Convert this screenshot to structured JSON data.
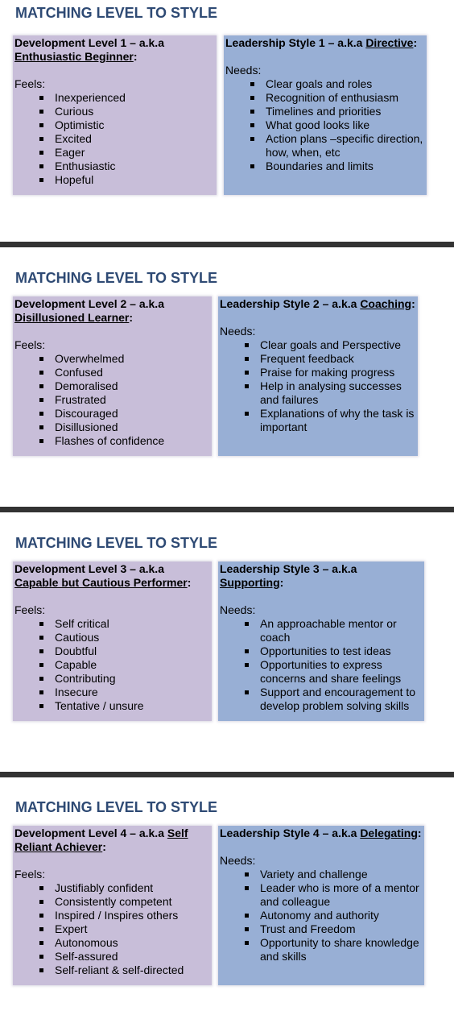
{
  "slides": [
    {
      "title": "MATCHING LEVEL TO STYLE",
      "left": {
        "heading_prefix": "Development Level 1 – a.k.a ",
        "heading_name": "Enthusiastic Beginner",
        "heading_suffix": ":",
        "label": "Feels:",
        "items": [
          "Inexperienced",
          "Curious",
          "Optimistic",
          "Excited",
          "Eager",
          "Enthusiastic",
          "Hopeful"
        ]
      },
      "right": {
        "heading_prefix": "Leadership Style 1 – a.k.a ",
        "heading_name": "Directive",
        "heading_suffix": ":",
        "label": "Needs:",
        "items": [
          "Clear goals and roles",
          "Recognition of enthusiasm",
          "Timelines and priorities",
          "What good looks like",
          "Action plans –specific direction, how, when, etc",
          "Boundaries and limits"
        ]
      }
    },
    {
      "title": "MATCHING LEVEL TO STYLE",
      "left": {
        "heading_prefix": "Development Level 2 – a.k.a ",
        "heading_name": "Disillusioned Learner",
        "heading_suffix": ":",
        "label": "Feels:",
        "items": [
          "Overwhelmed",
          "Confused",
          "Demoralised",
          "Frustrated",
          "Discouraged",
          "Disillusioned",
          "Flashes of confidence"
        ]
      },
      "right": {
        "heading_prefix": "Leadership Style 2 – a.k.a ",
        "heading_name": "Coaching",
        "heading_suffix": ":",
        "label": "Needs:",
        "items": [
          "Clear goals and Perspective",
          "Frequent feedback",
          "Praise for making progress",
          "Help in analysing successes and failures",
          "Explanations of why the task is important"
        ]
      }
    },
    {
      "title": "MATCHING LEVEL TO STYLE",
      "left": {
        "heading_prefix": "Development Level 3 – a.k.a ",
        "heading_name": "Capable but Cautious Performer",
        "heading_suffix": ":",
        "label": "Feels:",
        "items": [
          "Self critical",
          "Cautious",
          "Doubtful",
          "Capable",
          "Contributing",
          "Insecure",
          "Tentative / unsure"
        ]
      },
      "right": {
        "heading_prefix": "Leadership Style 3 – a.k.a ",
        "heading_name": "Supporting",
        "heading_suffix": ":",
        "label": "Needs:",
        "items": [
          "An approachable mentor or coach",
          "Opportunities to test ideas",
          "Opportunities to express concerns and share feelings",
          "Support and encouragement to develop problem solving skills"
        ]
      }
    },
    {
      "title": "MATCHING LEVEL TO STYLE",
      "left": {
        "heading_prefix": "Development Level 4 – a.k.a ",
        "heading_name": "Self Reliant Achiever",
        "heading_suffix": ":",
        "label": "Feels:",
        "items": [
          "Justifiably confident",
          "Consistently competent",
          "Inspired / Inspires others",
          "Expert",
          "Autonomous",
          "Self-assured",
          "Self-reliant & self-directed"
        ]
      },
      "right": {
        "heading_prefix": "Leadership Style 4 – a.k.a ",
        "heading_name": "Delegating",
        "heading_suffix": ":",
        "label": "Needs:",
        "items": [
          "Variety and challenge",
          "Leader who is more of a mentor and colleague",
          "Autonomy and authority",
          "Trust and Freedom",
          "Opportunity to share knowledge and skills"
        ]
      }
    }
  ],
  "colors": {
    "title": "#2e4a74",
    "development_box": "#c8bed9",
    "leadership_box": "#98afd5",
    "divider": "#333333"
  }
}
